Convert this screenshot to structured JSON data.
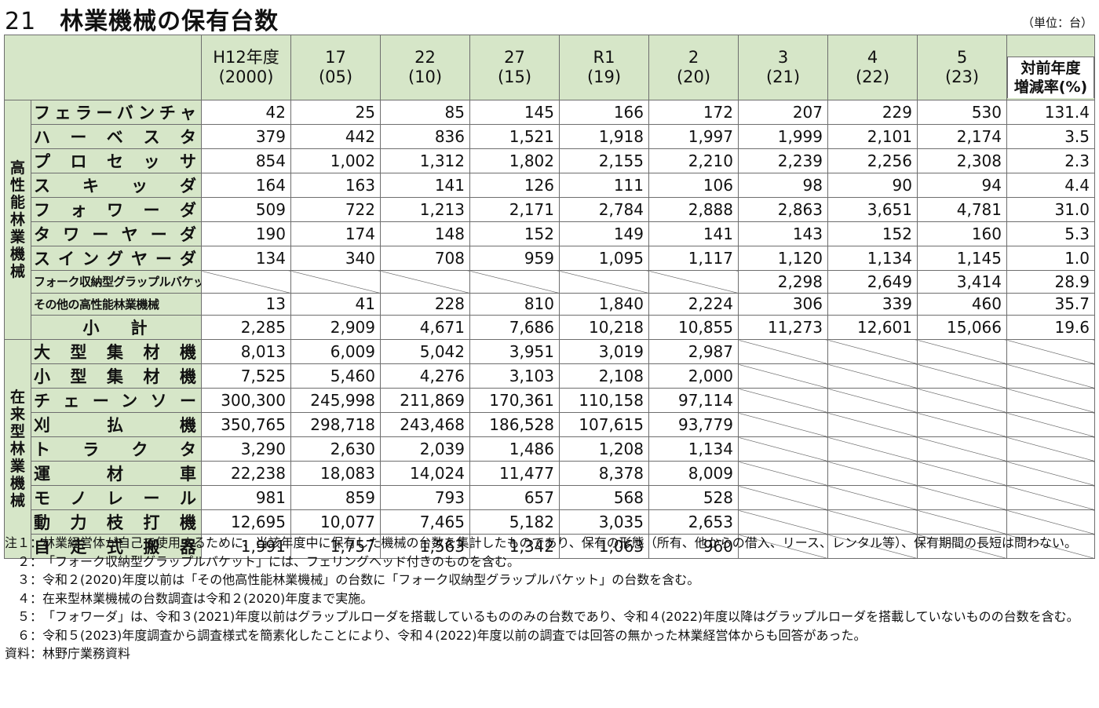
{
  "title": {
    "number": "21",
    "text": "林業機械の保有台数"
  },
  "unit": "（単位：台）",
  "header": {
    "columns": [
      [
        "H12年度",
        "(2000)"
      ],
      [
        "17",
        "(05)"
      ],
      [
        "22",
        "(10)"
      ],
      [
        "27",
        "(15)"
      ],
      [
        "R1",
        "(19)"
      ],
      [
        "2",
        "(20)"
      ],
      [
        "3",
        "(21)"
      ],
      [
        "4",
        "(22)"
      ],
      [
        "5",
        "(23)"
      ]
    ],
    "rate": [
      "対前年度",
      "増減率(%)"
    ]
  },
  "groups": [
    {
      "category": "高性能林業機械",
      "rows": [
        {
          "name": "フェラーバンチャ",
          "values": [
            "42",
            "25",
            "85",
            "145",
            "166",
            "172",
            "207",
            "229",
            "530",
            "131.4"
          ]
        },
        {
          "name": "ハーベスタ",
          "values": [
            "379",
            "442",
            "836",
            "1,521",
            "1,918",
            "1,997",
            "1,999",
            "2,101",
            "2,174",
            "3.5"
          ]
        },
        {
          "name": "プロセッサ",
          "values": [
            "854",
            "1,002",
            "1,312",
            "1,802",
            "2,155",
            "2,210",
            "2,239",
            "2,256",
            "2,308",
            "2.3"
          ]
        },
        {
          "name": "スキッダ",
          "values": [
            "164",
            "163",
            "141",
            "126",
            "111",
            "106",
            "98",
            "90",
            "94",
            "4.4"
          ]
        },
        {
          "name": "フォワーダ",
          "values": [
            "509",
            "722",
            "1,213",
            "2,171",
            "2,784",
            "2,888",
            "2,863",
            "3,651",
            "4,781",
            "31.0"
          ]
        },
        {
          "name": "タワーヤーダ",
          "values": [
            "190",
            "174",
            "148",
            "152",
            "149",
            "141",
            "143",
            "152",
            "160",
            "5.3"
          ]
        },
        {
          "name": "スイングヤーダ",
          "values": [
            "134",
            "340",
            "708",
            "959",
            "1,095",
            "1,117",
            "1,120",
            "1,134",
            "1,145",
            "1.0"
          ]
        },
        {
          "name": "フォーク収納型グラップルバケット",
          "small": true,
          "values": [
            "",
            "",
            "",
            "",
            "",
            "",
            "2,298",
            "2,649",
            "3,414",
            "28.9"
          ]
        },
        {
          "name": "その他の高性能林業機械",
          "small": true,
          "values": [
            "13",
            "41",
            "228",
            "810",
            "1,840",
            "2,224",
            "306",
            "339",
            "460",
            "35.7"
          ]
        },
        {
          "name": "小計",
          "center": true,
          "values": [
            "2,285",
            "2,909",
            "4,671",
            "7,686",
            "10,218",
            "10,855",
            "11,273",
            "12,601",
            "15,066",
            "19.6"
          ]
        }
      ]
    },
    {
      "category": "在来型林業機械",
      "rows": [
        {
          "name": "大型集材機",
          "values": [
            "8,013",
            "6,009",
            "5,042",
            "3,951",
            "3,019",
            "2,987",
            "",
            "",
            "",
            ""
          ]
        },
        {
          "name": "小型集材機",
          "values": [
            "7,525",
            "5,460",
            "4,276",
            "3,103",
            "2,108",
            "2,000",
            "",
            "",
            "",
            ""
          ]
        },
        {
          "name": "チェーンソー",
          "values": [
            "300,300",
            "245,998",
            "211,869",
            "170,361",
            "110,158",
            "97,114",
            "",
            "",
            "",
            ""
          ]
        },
        {
          "name": "刈払機",
          "values": [
            "350,765",
            "298,718",
            "243,468",
            "186,528",
            "107,615",
            "93,779",
            "",
            "",
            "",
            ""
          ]
        },
        {
          "name": "トラクタ",
          "values": [
            "3,290",
            "2,630",
            "2,039",
            "1,486",
            "1,208",
            "1,134",
            "",
            "",
            "",
            ""
          ]
        },
        {
          "name": "運材車",
          "values": [
            "22,238",
            "18,083",
            "14,024",
            "11,477",
            "8,378",
            "8,009",
            "",
            "",
            "",
            ""
          ]
        },
        {
          "name": "モノレール",
          "values": [
            "981",
            "859",
            "793",
            "657",
            "568",
            "528",
            "",
            "",
            "",
            ""
          ]
        },
        {
          "name": "動力枝打機",
          "values": [
            "12,695",
            "10,077",
            "7,465",
            "5,182",
            "3,035",
            "2,653",
            "",
            "",
            "",
            ""
          ]
        },
        {
          "name": "自走式搬器",
          "values": [
            "1,991",
            "1,757",
            "1,563",
            "1,342",
            "1,063",
            "960",
            "",
            "",
            "",
            ""
          ]
        }
      ]
    }
  ],
  "notes": [
    {
      "label": "注１：",
      "text": "林業経営体が自己で使用するために、当該年度中に保有した機械の台数を集計したものであり、保有の形態（所有、他からの借入、リース、レンタル等）、保有期間の長短は問わない。"
    },
    {
      "label": "　２：",
      "text": "「フォーク収納型グラップルバケット」には、フェリングヘッド付きのものを含む。"
    },
    {
      "label": "　３：",
      "text": "令和２(2020)年度以前は「その他高性能林業機械」の台数に「フォーク収納型グラップルバケット」の台数を含む。"
    },
    {
      "label": "　４：",
      "text": "在来型林業機械の台数調査は令和２(2020)年度まで実施。"
    },
    {
      "label": "　５：",
      "text": "「フォワーダ」は、令和３(2021)年度以前はグラップルローダを搭載しているもののみの台数であり、令和４(2022)年度以降はグラップルローダを搭載していないものの台数を含む。"
    },
    {
      "label": "　６：",
      "text": "令和５(2023)年度調査から調査様式を簡素化したことにより、令和４(2022)年度以前の調査では回答の無かった林業経営体からも回答があった。"
    },
    {
      "label": "資料：",
      "text": "林野庁業務資料"
    }
  ]
}
